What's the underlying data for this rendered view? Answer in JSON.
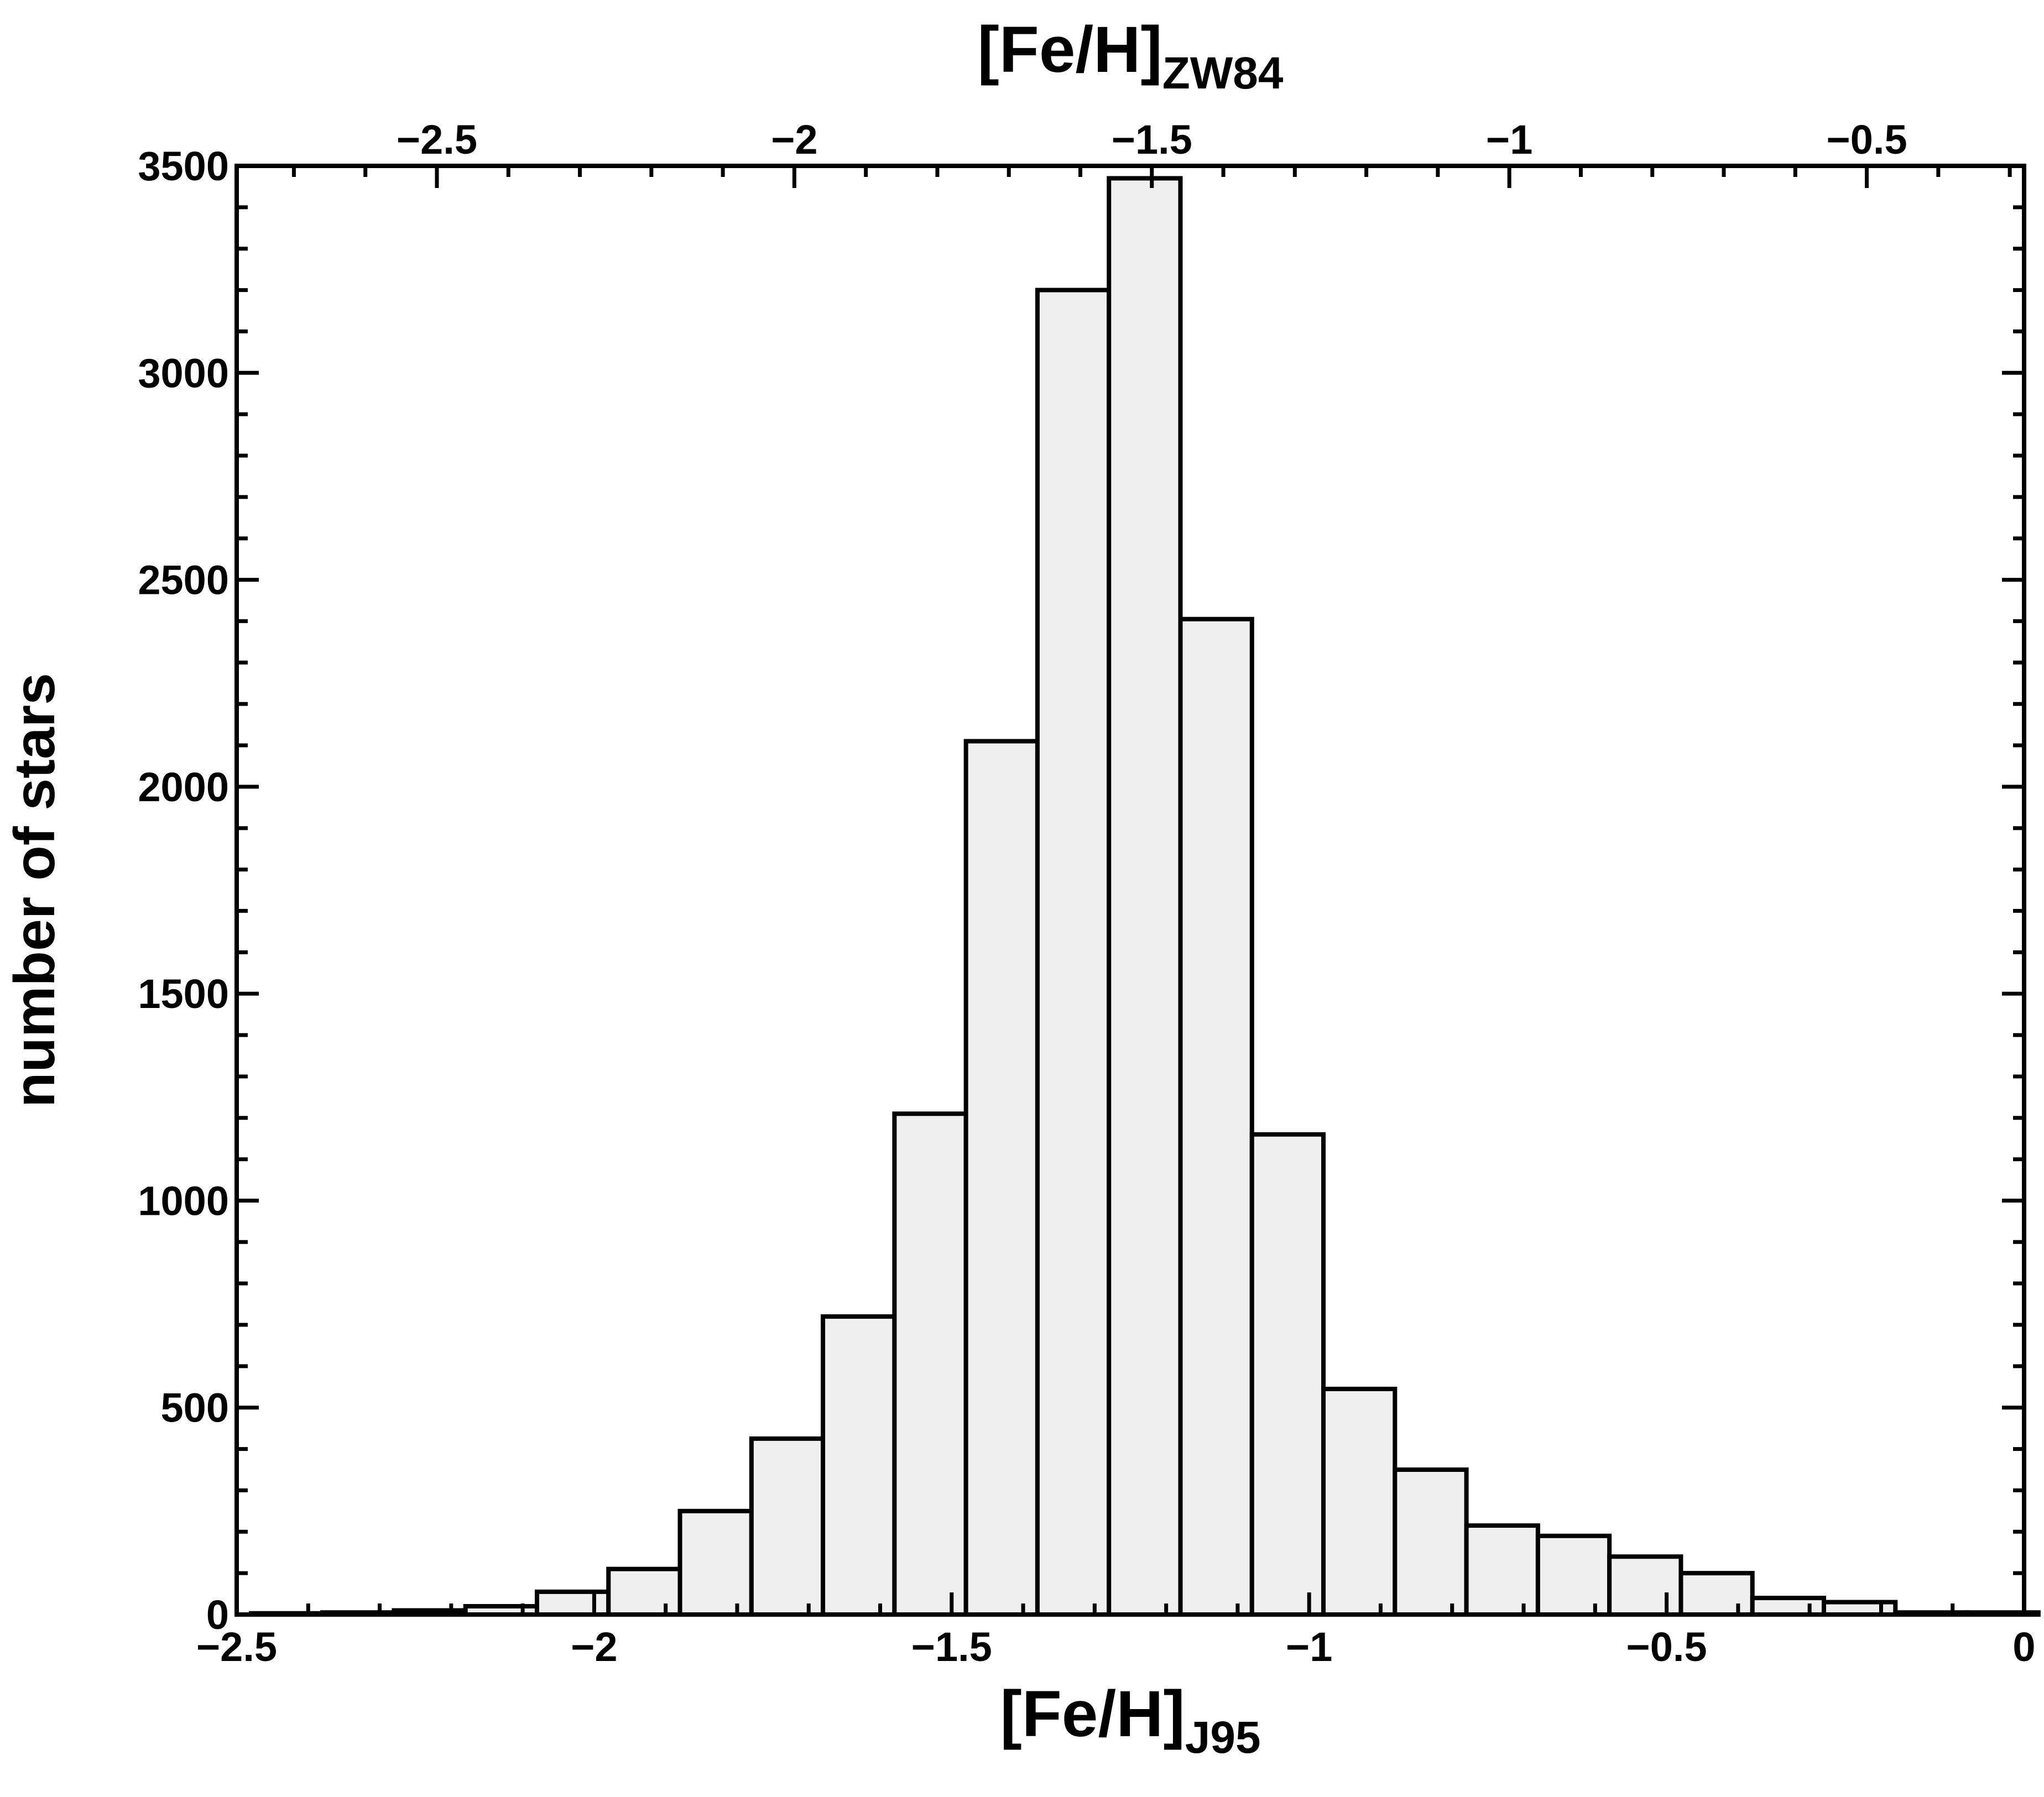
{
  "chart_data": {
    "type": "bar",
    "title": "",
    "xlabel": {
      "main": "[Fe/H]",
      "sub": "J95"
    },
    "x2label": {
      "main": "[Fe/H]",
      "sub": "ZW84"
    },
    "ylabel": "number of stars",
    "xlim": [
      -2.5,
      0
    ],
    "x2lim": [
      -2.78,
      -0.28
    ],
    "ylim": [
      0,
      3500
    ],
    "x_ticks": [
      -2.5,
      -2,
      -1.5,
      -1,
      -0.5,
      0
    ],
    "x_tick_labels": [
      "−2.5",
      "−2",
      "−1.5",
      "−1",
      "−0.5",
      "0"
    ],
    "x2_ticks": [
      -2.5,
      -2,
      -1.5,
      -1,
      -0.5
    ],
    "x2_tick_labels": [
      "−2.5",
      "−2",
      "−1.5",
      "−1",
      "−0.5"
    ],
    "y_ticks": [
      0,
      500,
      1000,
      1500,
      2000,
      2500,
      3000,
      3500
    ],
    "y_tick_labels": [
      "0",
      "500",
      "1000",
      "1500",
      "2000",
      "2500",
      "3000",
      "3500"
    ],
    "bin_width": 0.1,
    "bin_left_edges": [
      -2.48,
      -2.38,
      -2.28,
      -2.18,
      -2.08,
      -1.98,
      -1.88,
      -1.78,
      -1.68,
      -1.58,
      -1.48,
      -1.38,
      -1.28,
      -1.18,
      -1.08,
      -0.98,
      -0.88,
      -0.78,
      -0.68,
      -0.58,
      -0.48,
      -0.38,
      -0.28,
      -0.18,
      -0.08
    ],
    "values": [
      3,
      5,
      10,
      20,
      55,
      110,
      250,
      425,
      720,
      1210,
      2110,
      3200,
      3470,
      2405,
      1160,
      545,
      350,
      215,
      190,
      140,
      100,
      40,
      30,
      5,
      5
    ],
    "bar_fill": "#efefef",
    "bar_edge": "#000000",
    "grid": false,
    "legend": "none"
  }
}
